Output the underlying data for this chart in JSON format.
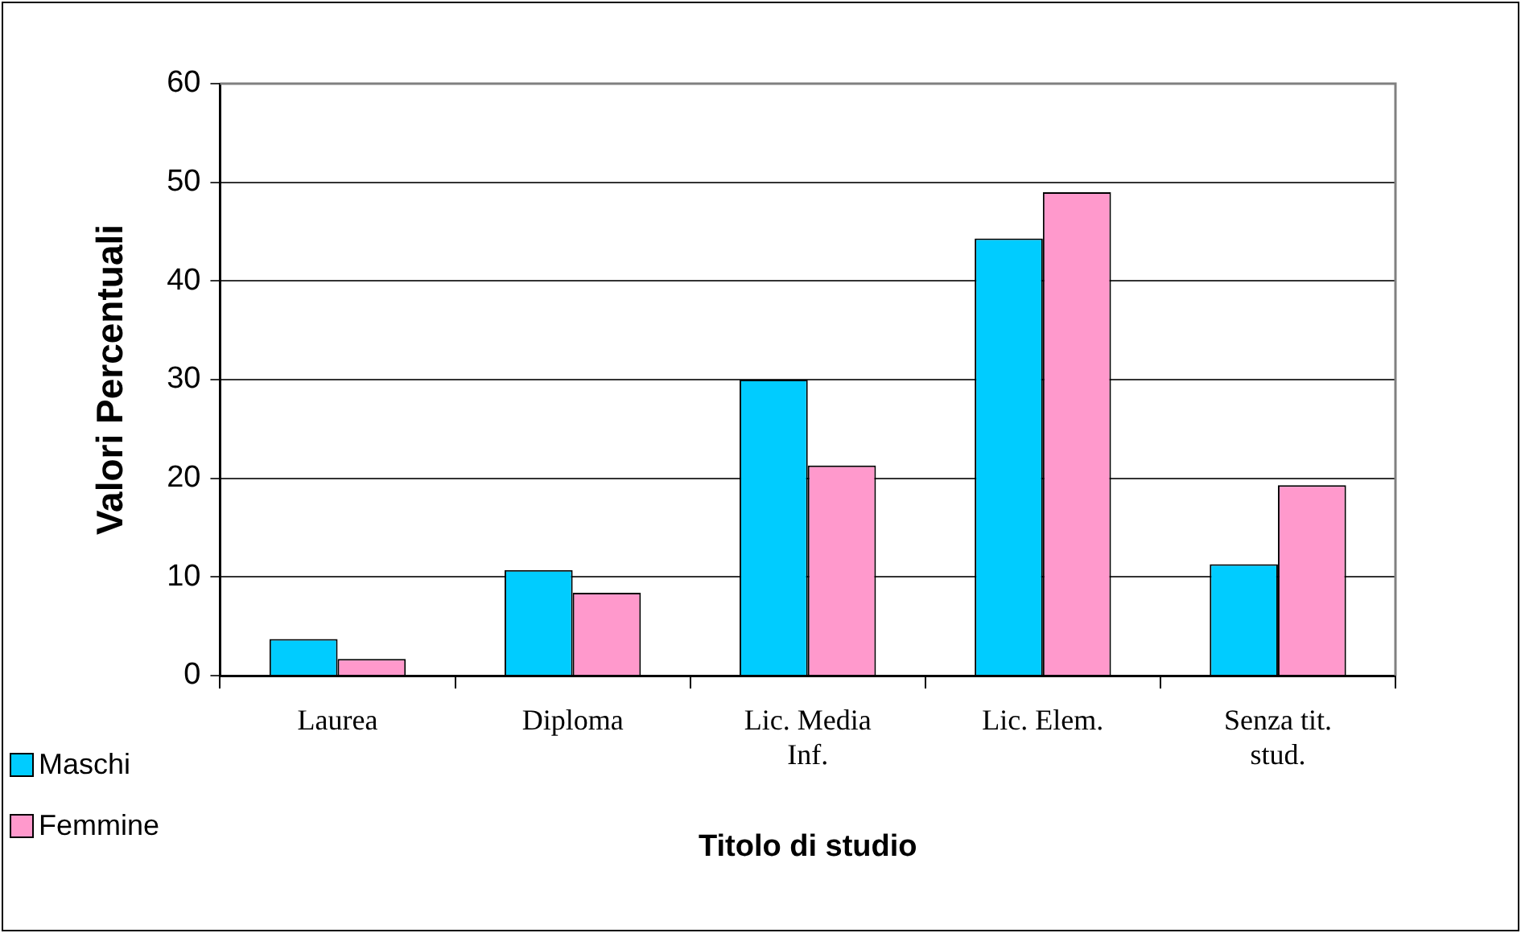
{
  "chart_data": {
    "type": "bar",
    "xlabel": "Titolo di studio",
    "ylabel": "Valori Percentuali",
    "categories": [
      "Laurea",
      "Diploma",
      "Lic. Media Inf.",
      "Lic. Elem.",
      "Senza tit. stud."
    ],
    "series": [
      {
        "name": "Maschi",
        "color": "#00ccff",
        "values": [
          3.7,
          10.7,
          30.0,
          44.3,
          11.3
        ]
      },
      {
        "name": "Femmine",
        "color": "#ff99cc",
        "values": [
          1.7,
          8.4,
          21.3,
          49.0,
          19.3
        ]
      }
    ],
    "ylim": [
      0,
      60
    ],
    "yticks": [
      0,
      10,
      20,
      30,
      40,
      50,
      60
    ],
    "grid": "y",
    "legend": "bottom left"
  }
}
